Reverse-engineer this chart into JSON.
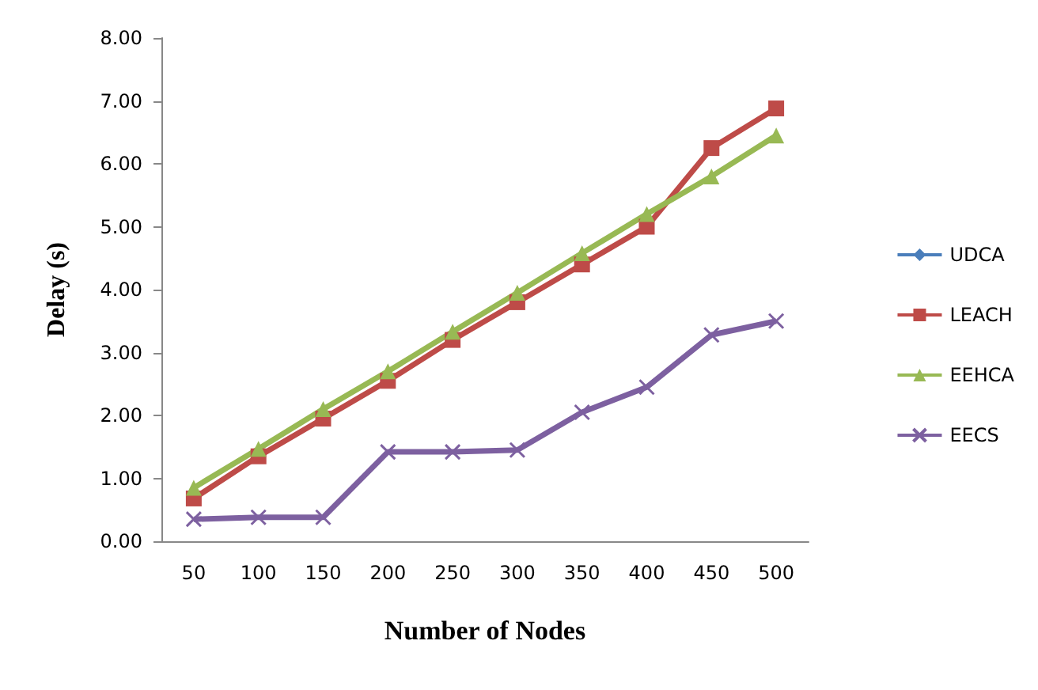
{
  "chart_data": {
    "type": "line",
    "xlabel": "Number of Nodes",
    "ylabel": "Delay (s)",
    "categories": [
      "50",
      "100",
      "150",
      "200",
      "250",
      "300",
      "350",
      "400",
      "450",
      "500"
    ],
    "ylim": [
      0,
      8
    ],
    "yticks": [
      {
        "value": 0,
        "label": "0.00"
      },
      {
        "value": 1,
        "label": "1.00"
      },
      {
        "value": 2,
        "label": "2.00"
      },
      {
        "value": 3,
        "label": "3.00"
      },
      {
        "value": 4,
        "label": "4.00"
      },
      {
        "value": 5,
        "label": "5.00"
      },
      {
        "value": 6,
        "label": "6.00"
      },
      {
        "value": 7,
        "label": "7.00"
      },
      {
        "value": 8,
        "label": "8.00"
      }
    ],
    "grid": false,
    "legend": "right",
    "series": [
      {
        "name": "UDCA",
        "color": "#4a7ebb",
        "marker": "diamond",
        "values": [
          null,
          null,
          null,
          null,
          null,
          null,
          null,
          null,
          null,
          null
        ]
      },
      {
        "name": "LEACH",
        "color": "#be4b48",
        "marker": "square",
        "values": [
          0.68,
          1.35,
          1.95,
          2.55,
          3.2,
          3.8,
          4.4,
          5.0,
          6.25,
          6.88
        ]
      },
      {
        "name": "EEHCA",
        "color": "#98b954",
        "marker": "triangle",
        "values": [
          0.85,
          1.47,
          2.1,
          2.7,
          3.33,
          3.95,
          4.58,
          5.2,
          5.8,
          6.45
        ]
      },
      {
        "name": "EECS",
        "color": "#7d60a0",
        "marker": "cross",
        "values": [
          0.35,
          0.38,
          0.38,
          1.42,
          1.42,
          1.45,
          2.05,
          2.45,
          3.28,
          3.5
        ]
      }
    ]
  }
}
